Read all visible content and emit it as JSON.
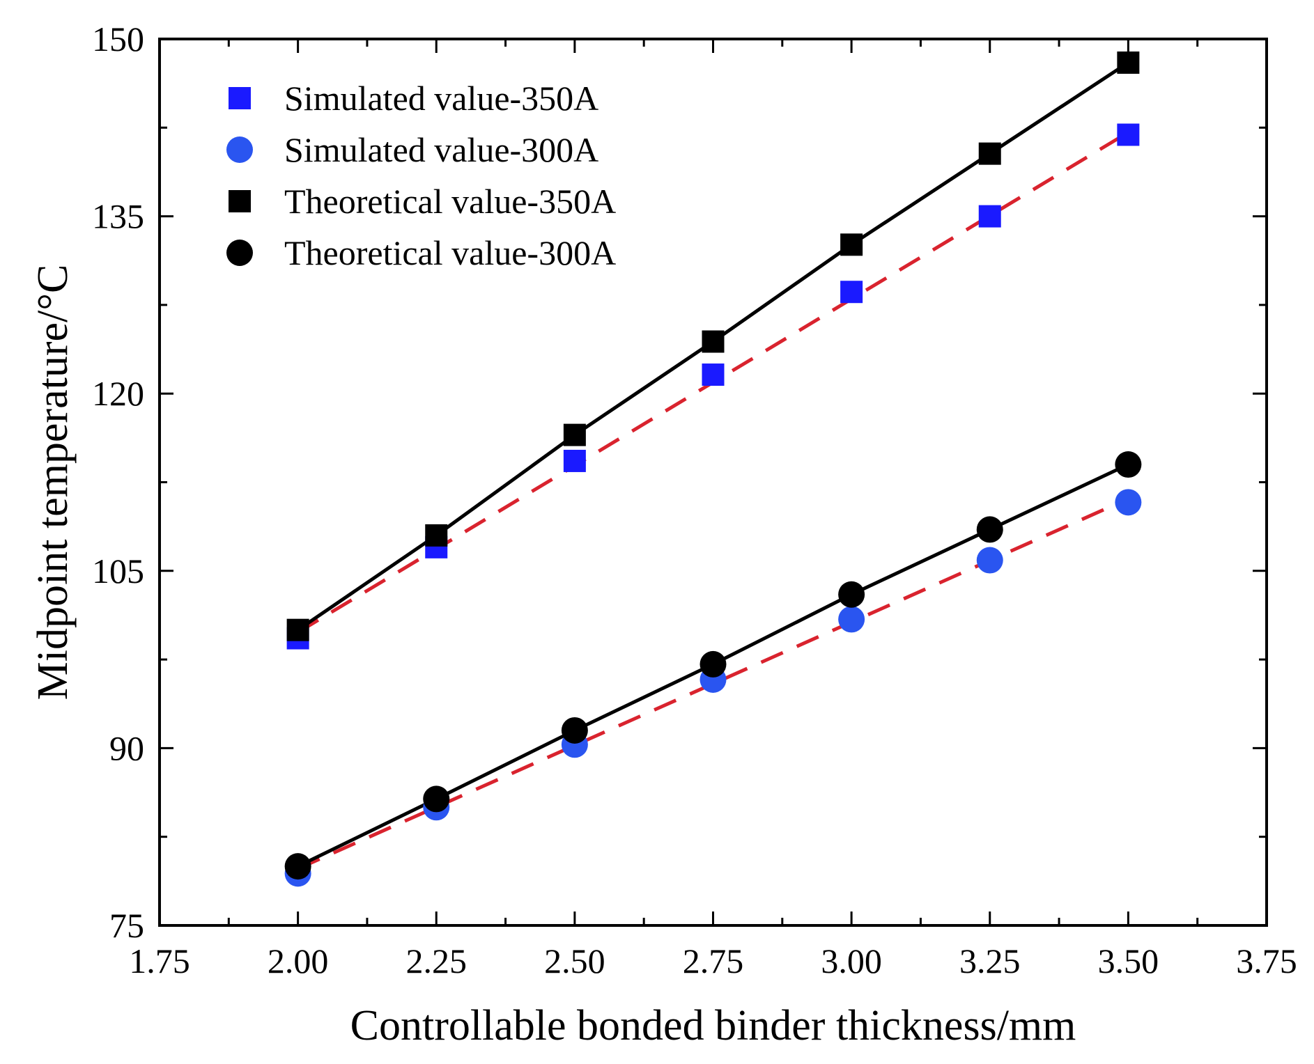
{
  "chart_data": {
    "type": "line",
    "title": "",
    "xlabel": "Controllable bonded binder thickness/mm",
    "ylabel": "Midpoint temperature/°C",
    "xlim": [
      1.75,
      3.75
    ],
    "ylim": [
      75,
      150
    ],
    "xticks": [
      1.75,
      2.0,
      2.25,
      2.5,
      2.75,
      3.0,
      3.25,
      3.5,
      3.75
    ],
    "xtick_labels": [
      "1.75",
      "2.00",
      "2.25",
      "2.50",
      "2.75",
      "3.00",
      "3.25",
      "3.50",
      "3.75"
    ],
    "yticks": [
      75,
      90,
      105,
      120,
      135,
      150
    ],
    "ytick_labels": [
      "75",
      "90",
      "105",
      "120",
      "135",
      "150"
    ],
    "grid": false,
    "legend_position": "top-left",
    "x": [
      2.0,
      2.25,
      2.5,
      2.75,
      3.0,
      3.25,
      3.5
    ],
    "series": [
      {
        "name": "Simulated value-350A",
        "marker": "square",
        "color": "#1a1aff",
        "line": "dashed",
        "line_color": "#d9232e",
        "values": [
          99.3,
          107.0,
          114.3,
          121.6,
          128.6,
          135.0,
          141.9
        ],
        "fit": [
          99.8,
          142.1
        ]
      },
      {
        "name": "Simulated value-300A",
        "marker": "circle",
        "color": "#2a55f0",
        "line": "dashed",
        "line_color": "#d9232e",
        "values": [
          79.4,
          85.0,
          90.3,
          95.8,
          100.9,
          105.9,
          110.8
        ],
        "fit": [
          79.8,
          111.1
        ]
      },
      {
        "name": "Theoretical value-350A",
        "marker": "square",
        "color": "#000000",
        "line": "solid",
        "line_color": "#000000",
        "values": [
          100.0,
          108.0,
          116.5,
          124.4,
          132.6,
          140.3,
          148.0
        ]
      },
      {
        "name": "Theoretical value-300A",
        "marker": "circle",
        "color": "#000000",
        "line": "solid",
        "line_color": "#000000",
        "values": [
          80.0,
          85.7,
          91.5,
          97.1,
          103.0,
          108.5,
          114.0
        ]
      }
    ]
  }
}
